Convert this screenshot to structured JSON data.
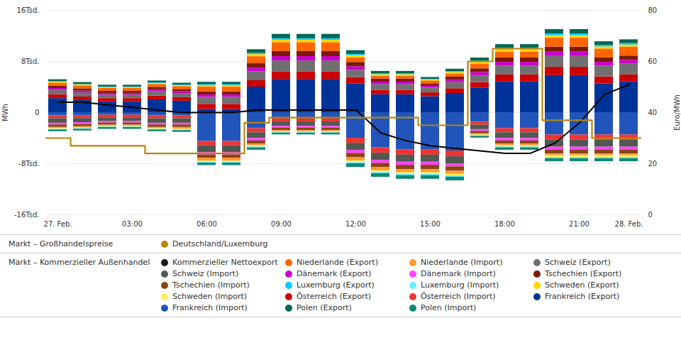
{
  "chart_data": {
    "type": "bar",
    "stacked": true,
    "grid": true,
    "legend": "bottom",
    "categories": [
      "27. Feb.",
      null,
      null,
      "03:00",
      null,
      null,
      "06:00",
      null,
      null,
      "09:00",
      null,
      null,
      "12:00",
      null,
      null,
      "15:00",
      null,
      null,
      "18:00",
      null,
      null,
      "21:00",
      null,
      "28. Feb."
    ],
    "ylabel": "MWh",
    "y2label": "Euro/MWh",
    "ylim": [
      -16000,
      16000
    ],
    "yticks": [
      {
        "value": -16000,
        "label": "-16Tsd."
      },
      {
        "value": -8000,
        "label": "-8Tsd."
      },
      0,
      {
        "value": 8000,
        "label": "8Tsd."
      },
      {
        "value": 16000,
        "label": "16Tsd."
      }
    ],
    "y2lim": [
      0,
      80
    ],
    "y2ticks": [
      0,
      20,
      40,
      60,
      80
    ],
    "series": [
      {
        "name": "Frankreich (Export)",
        "color": "#003399",
        "values": [
          2200,
          1900,
          1700,
          1700,
          2000,
          1800,
          500,
          500,
          4000,
          5200,
          5200,
          5200,
          4500,
          2800,
          2800,
          2500,
          3000,
          3800,
          4800,
          4800,
          5800,
          5800,
          4500,
          4800
        ]
      },
      {
        "name": "Österreich (Export)",
        "color": "#CC0000",
        "values": [
          600,
          550,
          500,
          500,
          600,
          550,
          800,
          800,
          1000,
          1200,
          1200,
          1200,
          1000,
          700,
          700,
          600,
          750,
          900,
          1100,
          1100,
          1300,
          1300,
          1100,
          1100
        ]
      },
      {
        "name": "Schweiz (Export)",
        "color": "#707070",
        "values": [
          700,
          650,
          550,
          550,
          700,
          650,
          1100,
          1100,
          1400,
          1700,
          1700,
          1700,
          1100,
          900,
          900,
          750,
          950,
          1100,
          1400,
          1400,
          1700,
          1700,
          1700,
          1700
        ]
      },
      {
        "name": "Dänemark (Export)",
        "color": "#CC00CC",
        "values": [
          280,
          270,
          260,
          260,
          280,
          270,
          380,
          380,
          580,
          680,
          680,
          680,
          580,
          380,
          380,
          280,
          380,
          480,
          580,
          580,
          680,
          680,
          580,
          580
        ]
      },
      {
        "name": "Tschechien (Export)",
        "color": "#7B1A00",
        "values": [
          380,
          360,
          330,
          330,
          380,
          360,
          480,
          480,
          680,
          780,
          780,
          780,
          680,
          480,
          480,
          380,
          480,
          580,
          680,
          680,
          780,
          780,
          680,
          680
        ]
      },
      {
        "name": "Niederlande (Export)",
        "color": "#FF6600",
        "values": [
          450,
          450,
          450,
          450,
          450,
          450,
          750,
          750,
          1100,
          1400,
          1400,
          1400,
          750,
          450,
          450,
          450,
          500,
          750,
          950,
          950,
          1400,
          1400,
          1400,
          1400
        ]
      },
      {
        "name": "Schweden (Export)",
        "color": "#FFD700",
        "values": [
          180,
          170,
          140,
          140,
          180,
          170,
          230,
          230,
          330,
          380,
          380,
          380,
          330,
          230,
          230,
          180,
          230,
          280,
          330,
          330,
          380,
          380,
          330,
          330
        ]
      },
      {
        "name": "Luxemburg (Export)",
        "color": "#00CCFF",
        "values": [
          80,
          80,
          80,
          80,
          80,
          80,
          130,
          130,
          180,
          230,
          230,
          230,
          180,
          130,
          130,
          80,
          130,
          180,
          230,
          230,
          280,
          280,
          230,
          230
        ]
      },
      {
        "name": "Polen (Export)",
        "color": "#006655",
        "values": [
          280,
          280,
          280,
          280,
          280,
          280,
          380,
          380,
          580,
          680,
          680,
          680,
          580,
          380,
          380,
          280,
          380,
          480,
          580,
          580,
          680,
          680,
          580,
          580
        ]
      },
      {
        "name": "Frankreich (Import)",
        "color": "#2255BB",
        "values": [
          -500,
          -500,
          -400,
          -400,
          -500,
          -500,
          -4500,
          -4500,
          -2500,
          -1000,
          -1000,
          -1000,
          -4000,
          -5500,
          -5800,
          -5800,
          -6000,
          -1500,
          -2500,
          -2500,
          -3500,
          -3500,
          -3500,
          -3500
        ]
      },
      {
        "name": "Österreich (Import)",
        "color": "#EE3333",
        "values": [
          -450,
          -420,
          -400,
          -400,
          -450,
          -450,
          -650,
          -650,
          -650,
          -450,
          -450,
          -450,
          -800,
          -850,
          -850,
          -850,
          -900,
          -450,
          -650,
          -650,
          -800,
          -800,
          -800,
          -800
        ]
      },
      {
        "name": "Schweiz (Import)",
        "color": "#505850",
        "values": [
          -700,
          -650,
          -550,
          -550,
          -700,
          -700,
          -1100,
          -1100,
          -900,
          -700,
          -700,
          -700,
          -1100,
          -1100,
          -1100,
          -1100,
          -1100,
          -700,
          -900,
          -900,
          -1100,
          -1100,
          -1100,
          -1100
        ]
      },
      {
        "name": "Dänemark (Import)",
        "color": "#FF44FF",
        "values": [
          -280,
          -270,
          -260,
          -260,
          -280,
          -280,
          -380,
          -380,
          -380,
          -280,
          -280,
          -280,
          -480,
          -480,
          -480,
          -480,
          -480,
          -280,
          -380,
          -380,
          -480,
          -480,
          -480,
          -480
        ]
      },
      {
        "name": "Tschechien (Import)",
        "color": "#8B4513",
        "values": [
          -380,
          -360,
          -330,
          -330,
          -380,
          -380,
          -480,
          -480,
          -480,
          -380,
          -380,
          -380,
          -680,
          -680,
          -680,
          -680,
          -680,
          -380,
          -480,
          -480,
          -580,
          -580,
          -580,
          -580
        ]
      },
      {
        "name": "Niederlande (Import)",
        "color": "#FF9933",
        "values": [
          -180,
          -180,
          -180,
          -180,
          -180,
          -280,
          -480,
          -480,
          -280,
          -180,
          -180,
          -180,
          -480,
          -480,
          -480,
          -480,
          -480,
          -180,
          -280,
          -280,
          -280,
          -280,
          -280,
          -280
        ]
      },
      {
        "name": "Schweden (Import)",
        "color": "#FFEE55",
        "values": [
          -130,
          -130,
          -130,
          -130,
          -130,
          -130,
          -180,
          -180,
          -180,
          -130,
          -130,
          -130,
          -280,
          -280,
          -280,
          -280,
          -280,
          -130,
          -180,
          -180,
          -280,
          -280,
          -280,
          -280
        ]
      },
      {
        "name": "Luxemburg (Import)",
        "color": "#66EEFF",
        "values": [
          -80,
          -80,
          -80,
          -80,
          -80,
          -80,
          -130,
          -130,
          -130,
          -80,
          -80,
          -80,
          -180,
          -180,
          -180,
          -180,
          -180,
          -80,
          -130,
          -130,
          -180,
          -180,
          -180,
          -180
        ]
      },
      {
        "name": "Polen (Import)",
        "color": "#118877",
        "values": [
          -280,
          -280,
          -280,
          -280,
          -280,
          -280,
          -380,
          -380,
          -380,
          -280,
          -280,
          -280,
          -580,
          -580,
          -580,
          -580,
          -580,
          -280,
          -380,
          -380,
          -480,
          -480,
          -480,
          -480
        ]
      },
      {
        "type": "line",
        "axis": "y2",
        "color": "#000000",
        "values": [
          44,
          44,
          43,
          42,
          41,
          40,
          40,
          40,
          41,
          41,
          41,
          41,
          41,
          32,
          29,
          27,
          26,
          25,
          24,
          24,
          28,
          36,
          47,
          51
        ]
      },
      {
        "name": "Deutschland/Luxemburg",
        "type": "step",
        "axis": "y2",
        "color": "#B8860B",
        "values": [
          30,
          27,
          27,
          27,
          24,
          24,
          24,
          24,
          36,
          38,
          38,
          38,
          38,
          38,
          38,
          35,
          35,
          60,
          65,
          65,
          37,
          37,
          30,
          30
        ]
      }
    ],
    "legend_groups": [
      {
        "title": "Markt – Großhandelspreise",
        "items": [
          {
            "name": "Deutschland/Luxemburg",
            "color": "#B8860B"
          }
        ]
      },
      {
        "title": "Markt – Kommerzieller Außenhandel",
        "items": [
          {
            "name": "Kommerzieller Nettoexport",
            "color": "#1a1a1a"
          },
          {
            "name": "Niederlande (Export)",
            "color": "#FF6600"
          },
          {
            "name": "Niederlande (Import)",
            "color": "#FF9933"
          },
          {
            "name": "Schweiz (Export)",
            "color": "#707070"
          },
          {
            "name": "Schweiz (Import)",
            "color": "#505850"
          },
          {
            "name": "Dänemark (Export)",
            "color": "#CC00CC"
          },
          {
            "name": "Dänemark (Import)",
            "color": "#FF44FF"
          },
          {
            "name": "Tschechien (Export)",
            "color": "#7B1A00"
          },
          {
            "name": "Tschechien (Import)",
            "color": "#8B4513"
          },
          {
            "name": "Luxemburg (Export)",
            "color": "#00CCFF"
          },
          {
            "name": "Luxemburg (Import)",
            "color": "#66EEFF"
          },
          {
            "name": "Schweden (Export)",
            "color": "#FFD700"
          },
          {
            "name": "Schweden (Import)",
            "color": "#FFEE55"
          },
          {
            "name": "Österreich (Export)",
            "color": "#CC0000"
          },
          {
            "name": "Österreich (Import)",
            "color": "#EE3333"
          },
          {
            "name": "Frankreich (Export)",
            "color": "#003399"
          },
          {
            "name": "Frankreich (Import)",
            "color": "#2255BB"
          },
          {
            "name": "Polen (Export)",
            "color": "#006655"
          },
          {
            "name": "Polen (Import)",
            "color": "#118877"
          }
        ]
      }
    ]
  }
}
